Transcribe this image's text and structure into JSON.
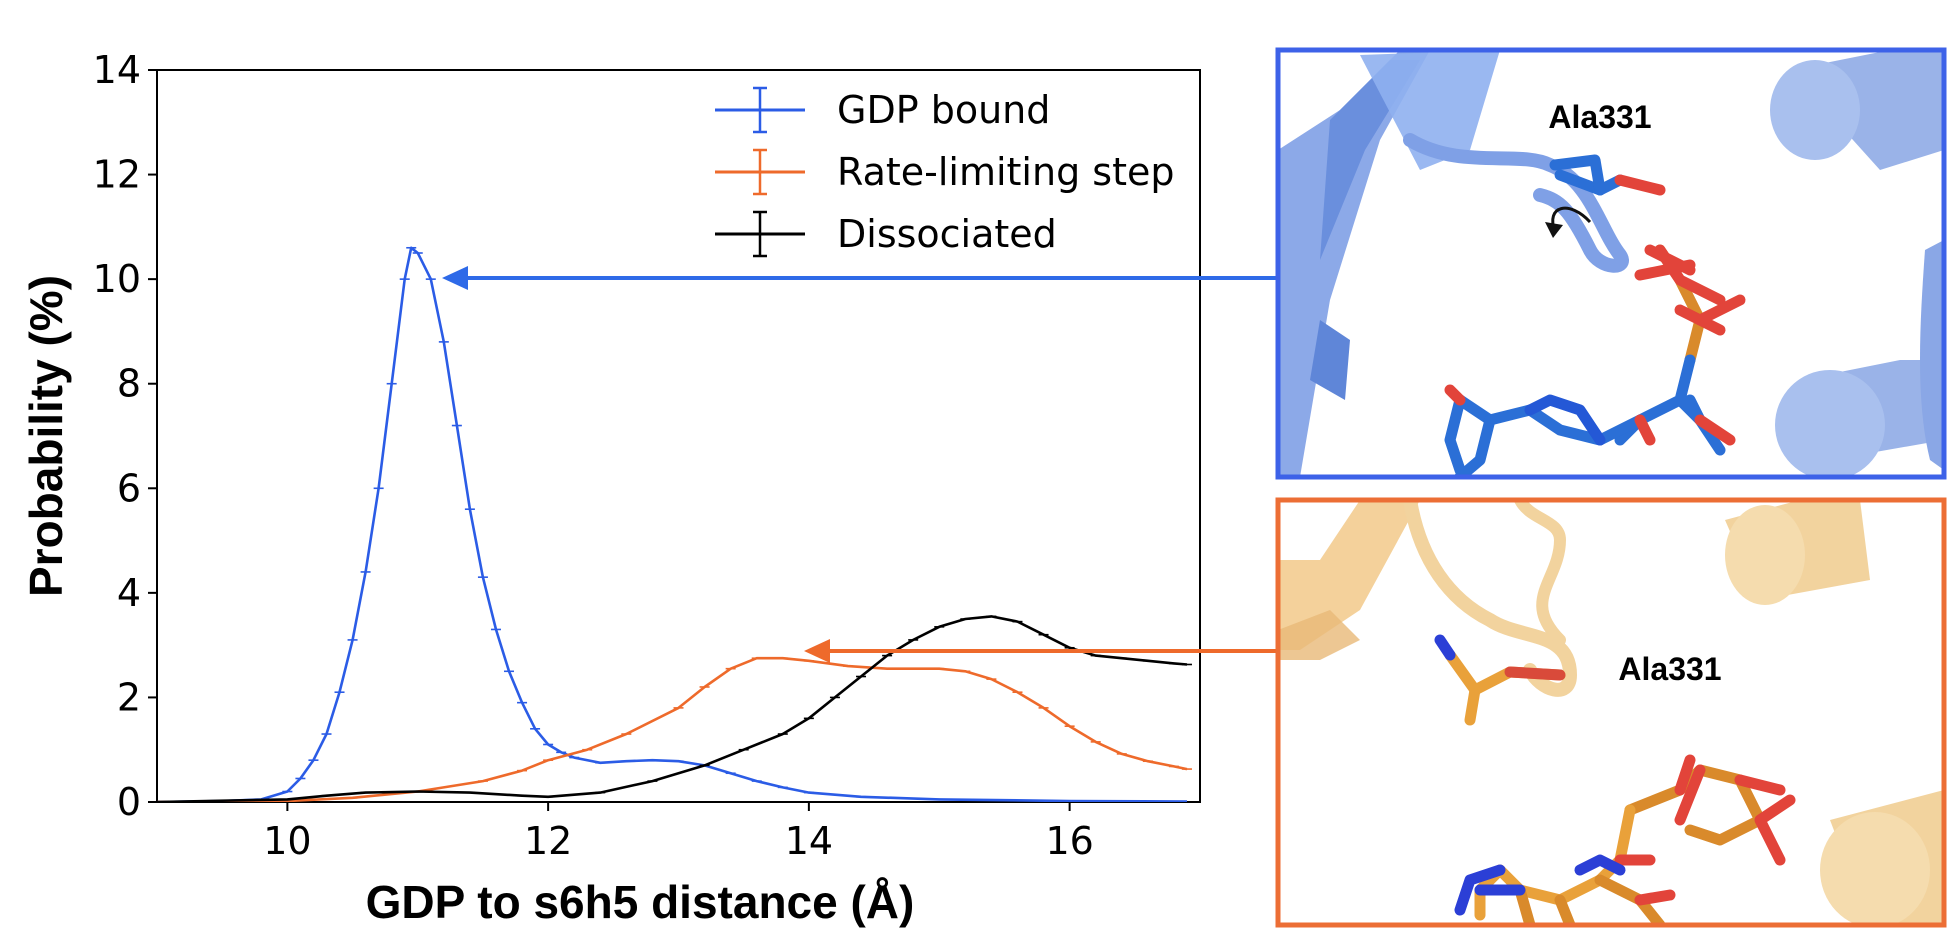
{
  "chart_data": {
    "type": "line",
    "xlabel": "GDP to s6h5 distance (Å)",
    "ylabel": "Probability (%)",
    "xlim": [
      9.0,
      17.0
    ],
    "ylim": [
      0,
      14
    ],
    "xticks": [
      10,
      12,
      14,
      16
    ],
    "yticks": [
      0,
      2,
      4,
      6,
      8,
      10,
      12,
      14
    ],
    "grid": false,
    "legend_position": "top-right",
    "series": [
      {
        "name": "GDP bound",
        "color": "#2b5ce6",
        "points": [
          [
            9.0,
            0
          ],
          [
            9.5,
            0.02
          ],
          [
            9.8,
            0.05
          ],
          [
            10.0,
            0.2
          ],
          [
            10.1,
            0.45
          ],
          [
            10.2,
            0.8
          ],
          [
            10.3,
            1.3
          ],
          [
            10.4,
            2.1
          ],
          [
            10.5,
            3.1
          ],
          [
            10.6,
            4.4
          ],
          [
            10.7,
            6.0
          ],
          [
            10.8,
            8.0
          ],
          [
            10.9,
            10.0
          ],
          [
            10.95,
            10.6
          ],
          [
            11.0,
            10.5
          ],
          [
            11.1,
            10.0
          ],
          [
            11.2,
            8.8
          ],
          [
            11.3,
            7.2
          ],
          [
            11.4,
            5.6
          ],
          [
            11.5,
            4.3
          ],
          [
            11.6,
            3.3
          ],
          [
            11.7,
            2.5
          ],
          [
            11.8,
            1.9
          ],
          [
            11.9,
            1.4
          ],
          [
            12.0,
            1.1
          ],
          [
            12.1,
            0.95
          ],
          [
            12.2,
            0.85
          ],
          [
            12.4,
            0.75
          ],
          [
            12.6,
            0.78
          ],
          [
            12.8,
            0.8
          ],
          [
            13.0,
            0.78
          ],
          [
            13.2,
            0.7
          ],
          [
            13.4,
            0.55
          ],
          [
            13.6,
            0.4
          ],
          [
            13.8,
            0.28
          ],
          [
            14.0,
            0.18
          ],
          [
            14.4,
            0.1
          ],
          [
            15.0,
            0.05
          ],
          [
            16.0,
            0.02
          ],
          [
            16.9,
            0.01
          ]
        ]
      },
      {
        "name": "Rate-limiting step",
        "color": "#ee6a2b",
        "points": [
          [
            9.0,
            0
          ],
          [
            10.0,
            0.02
          ],
          [
            10.5,
            0.08
          ],
          [
            11.0,
            0.2
          ],
          [
            11.5,
            0.4
          ],
          [
            11.8,
            0.6
          ],
          [
            12.0,
            0.8
          ],
          [
            12.3,
            1.0
          ],
          [
            12.6,
            1.3
          ],
          [
            13.0,
            1.8
          ],
          [
            13.2,
            2.2
          ],
          [
            13.4,
            2.55
          ],
          [
            13.6,
            2.75
          ],
          [
            13.8,
            2.75
          ],
          [
            14.0,
            2.7
          ],
          [
            14.3,
            2.6
          ],
          [
            14.6,
            2.55
          ],
          [
            15.0,
            2.55
          ],
          [
            15.2,
            2.5
          ],
          [
            15.4,
            2.35
          ],
          [
            15.6,
            2.1
          ],
          [
            15.8,
            1.8
          ],
          [
            16.0,
            1.45
          ],
          [
            16.2,
            1.15
          ],
          [
            16.4,
            0.92
          ],
          [
            16.6,
            0.78
          ],
          [
            16.8,
            0.68
          ],
          [
            16.9,
            0.63
          ]
        ]
      },
      {
        "name": "Dissociated",
        "color": "#000000",
        "points": [
          [
            9.0,
            0
          ],
          [
            10.0,
            0.05
          ],
          [
            10.3,
            0.12
          ],
          [
            10.6,
            0.18
          ],
          [
            11.0,
            0.2
          ],
          [
            11.4,
            0.18
          ],
          [
            11.8,
            0.12
          ],
          [
            12.0,
            0.1
          ],
          [
            12.4,
            0.18
          ],
          [
            12.8,
            0.4
          ],
          [
            13.2,
            0.7
          ],
          [
            13.5,
            1.0
          ],
          [
            13.8,
            1.3
          ],
          [
            14.0,
            1.6
          ],
          [
            14.2,
            2.0
          ],
          [
            14.4,
            2.4
          ],
          [
            14.6,
            2.8
          ],
          [
            14.8,
            3.1
          ],
          [
            15.0,
            3.35
          ],
          [
            15.2,
            3.5
          ],
          [
            15.4,
            3.55
          ],
          [
            15.6,
            3.45
          ],
          [
            15.8,
            3.2
          ],
          [
            16.0,
            2.95
          ],
          [
            16.2,
            2.8
          ],
          [
            16.4,
            2.75
          ],
          [
            16.6,
            2.7
          ],
          [
            16.8,
            2.65
          ],
          [
            16.9,
            2.63
          ]
        ]
      }
    ]
  },
  "panels": {
    "top": {
      "label": "Ala331",
      "border_color": "#3d62e8",
      "bg_color": "#ffffff"
    },
    "bottom": {
      "label": "Ala331",
      "border_color": "#ec6e35",
      "bg_color": "#ffffff"
    }
  },
  "colors": {
    "blue_protein": "#7fa0e6",
    "orange_protein": "#f2c98a",
    "arrow_blue": "#2e6ae8",
    "arrow_orange": "#ee6a2b"
  }
}
